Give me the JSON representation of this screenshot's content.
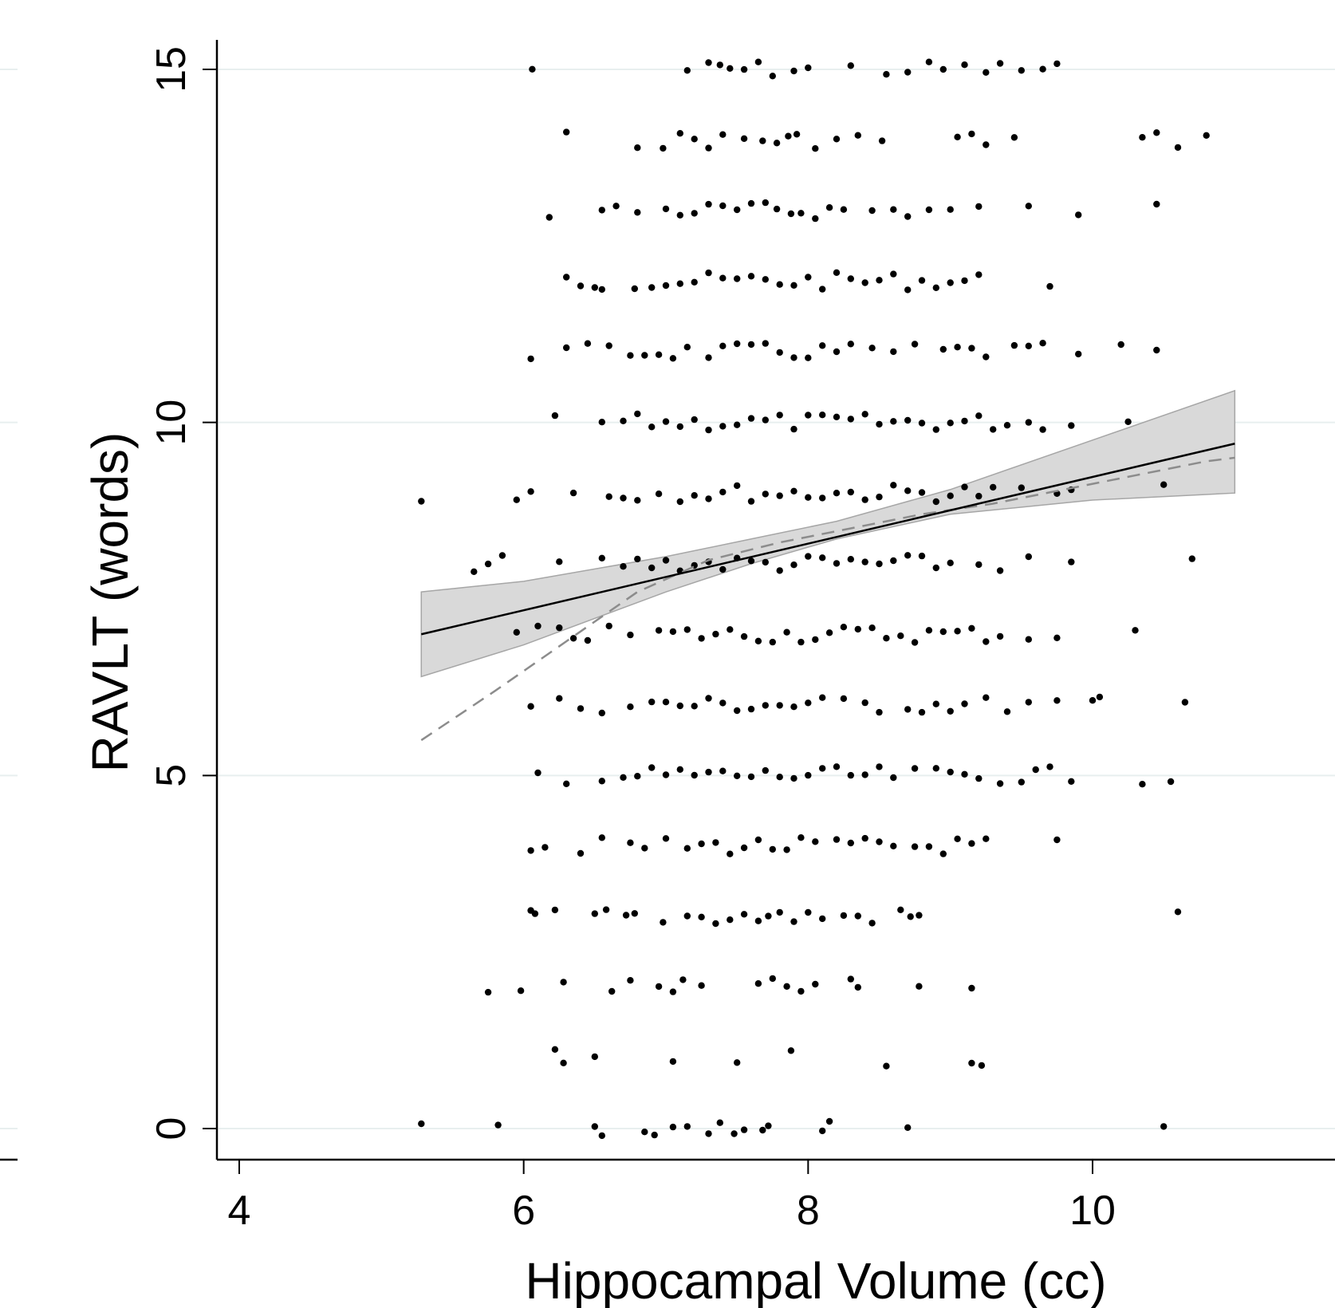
{
  "chart_data": {
    "type": "scatter",
    "title": "",
    "xlabel": "Hippocampal Volume (cc)",
    "ylabel": "RAVLT (words)",
    "xlim": [
      3.9,
      11.9
    ],
    "ylim": [
      -0.9,
      16.0
    ],
    "x_ticks": [
      4,
      6,
      8,
      10
    ],
    "y_ticks": [
      0,
      5,
      10,
      15
    ],
    "x_tick_labels": [
      "4",
      "6",
      "8",
      "10"
    ],
    "y_tick_labels": [
      "0",
      "5",
      "10",
      "15"
    ],
    "grid": true,
    "colors": {
      "points": "#000000",
      "ci_band": "#d9d9d9",
      "fit": "#000000",
      "lowess": "#8c8c8c"
    },
    "rows": [
      {
        "y": 15,
        "xs": [
          6.06,
          7.15,
          7.3,
          7.38,
          7.45,
          7.55,
          7.65,
          7.75,
          7.9,
          8.0,
          8.3,
          8.55,
          8.7,
          8.85,
          8.95,
          9.1,
          9.25,
          9.35,
          9.5,
          9.65,
          9.75
        ]
      },
      {
        "y": 14,
        "xs": [
          6.3,
          6.8,
          6.98,
          7.1,
          7.2,
          7.3,
          7.4,
          7.55,
          7.68,
          7.78,
          7.86,
          7.92,
          8.05,
          8.2,
          8.35,
          8.52,
          9.05,
          9.15,
          9.25,
          9.45,
          10.35,
          10.45,
          10.6,
          10.8
        ]
      },
      {
        "y": 13,
        "xs": [
          6.18,
          6.55,
          6.65,
          6.8,
          7.0,
          7.1,
          7.2,
          7.3,
          7.4,
          7.5,
          7.6,
          7.7,
          7.78,
          7.88,
          7.95,
          8.05,
          8.15,
          8.25,
          8.45,
          8.6,
          8.7,
          8.85,
          9.0,
          9.2,
          9.55,
          9.9,
          10.45
        ]
      },
      {
        "y": 12,
        "xs": [
          6.3,
          6.4,
          6.5,
          6.55,
          6.78,
          6.9,
          7.0,
          7.1,
          7.2,
          7.3,
          7.4,
          7.5,
          7.6,
          7.7,
          7.8,
          7.9,
          8.0,
          8.1,
          8.2,
          8.3,
          8.4,
          8.5,
          8.6,
          8.7,
          8.8,
          8.9,
          9.0,
          9.1,
          9.2,
          9.7
        ]
      },
      {
        "y": 11,
        "xs": [
          6.05,
          6.3,
          6.45,
          6.6,
          6.75,
          6.85,
          6.95,
          7.05,
          7.15,
          7.3,
          7.4,
          7.5,
          7.6,
          7.7,
          7.8,
          7.9,
          8.0,
          8.1,
          8.2,
          8.3,
          8.45,
          8.6,
          8.75,
          8.95,
          9.05,
          9.15,
          9.25,
          9.45,
          9.55,
          9.65,
          9.9,
          10.2,
          10.45
        ]
      },
      {
        "y": 10,
        "xs": [
          6.22,
          6.55,
          6.7,
          6.8,
          6.9,
          7.0,
          7.1,
          7.2,
          7.3,
          7.4,
          7.5,
          7.6,
          7.7,
          7.8,
          7.9,
          8.0,
          8.1,
          8.2,
          8.3,
          8.4,
          8.5,
          8.6,
          8.7,
          8.8,
          8.9,
          9.0,
          9.1,
          9.2,
          9.3,
          9.4,
          9.55,
          9.65,
          9.85,
          10.25
        ]
      },
      {
        "y": 9,
        "xs": [
          5.28,
          5.95,
          6.05,
          6.35,
          6.6,
          6.7,
          6.8,
          6.95,
          7.1,
          7.2,
          7.3,
          7.4,
          7.5,
          7.6,
          7.7,
          7.8,
          7.9,
          8.0,
          8.1,
          8.2,
          8.3,
          8.4,
          8.5,
          8.6,
          8.7,
          8.8,
          8.9,
          9.0,
          9.1,
          9.2,
          9.3,
          9.5,
          9.75,
          9.85,
          10.5
        ]
      },
      {
        "y": 8,
        "xs": [
          5.65,
          5.75,
          5.85,
          6.25,
          6.55,
          6.7,
          6.8,
          6.9,
          7.0,
          7.1,
          7.2,
          7.3,
          7.4,
          7.5,
          7.6,
          7.7,
          7.8,
          7.9,
          8.0,
          8.1,
          8.2,
          8.3,
          8.4,
          8.5,
          8.6,
          8.7,
          8.8,
          8.9,
          9.0,
          9.2,
          9.35,
          9.55,
          9.85,
          10.7
        ]
      },
      {
        "y": 7,
        "xs": [
          5.95,
          6.1,
          6.25,
          6.35,
          6.45,
          6.6,
          6.75,
          6.95,
          7.05,
          7.15,
          7.25,
          7.35,
          7.45,
          7.55,
          7.65,
          7.75,
          7.85,
          7.95,
          8.05,
          8.15,
          8.25,
          8.35,
          8.45,
          8.55,
          8.65,
          8.75,
          8.85,
          8.95,
          9.05,
          9.15,
          9.25,
          9.35,
          9.55,
          9.75,
          10.3
        ]
      },
      {
        "y": 6,
        "xs": [
          6.05,
          6.25,
          6.4,
          6.55,
          6.75,
          6.9,
          7.0,
          7.1,
          7.2,
          7.3,
          7.4,
          7.5,
          7.6,
          7.7,
          7.8,
          7.9,
          8.0,
          8.1,
          8.25,
          8.4,
          8.5,
          8.7,
          8.8,
          8.9,
          9.0,
          9.1,
          9.25,
          9.4,
          9.55,
          9.75,
          10.0,
          10.05,
          10.65
        ]
      },
      {
        "y": 5,
        "xs": [
          6.1,
          6.3,
          6.55,
          6.7,
          6.8,
          6.9,
          7.0,
          7.1,
          7.2,
          7.3,
          7.4,
          7.5,
          7.6,
          7.7,
          7.8,
          7.9,
          8.0,
          8.1,
          8.2,
          8.3,
          8.4,
          8.5,
          8.6,
          8.75,
          8.9,
          9.0,
          9.1,
          9.2,
          9.35,
          9.5,
          9.6,
          9.7,
          9.85,
          10.35,
          10.55
        ]
      },
      {
        "y": 4,
        "xs": [
          6.05,
          6.15,
          6.4,
          6.55,
          6.75,
          6.85,
          7.0,
          7.15,
          7.25,
          7.35,
          7.45,
          7.55,
          7.65,
          7.75,
          7.85,
          7.95,
          8.05,
          8.2,
          8.3,
          8.4,
          8.5,
          8.6,
          8.75,
          8.85,
          8.95,
          9.05,
          9.15,
          9.25,
          9.75
        ]
      },
      {
        "y": 3,
        "xs": [
          6.05,
          6.08,
          6.22,
          6.5,
          6.58,
          6.72,
          6.78,
          6.98,
          7.15,
          7.25,
          7.35,
          7.45,
          7.55,
          7.65,
          7.72,
          7.8,
          7.9,
          8.0,
          8.1,
          8.25,
          8.35,
          8.45,
          8.65,
          8.72,
          8.78,
          10.6
        ]
      },
      {
        "y": 2,
        "xs": [
          5.75,
          5.98,
          6.28,
          6.62,
          6.75,
          6.95,
          7.05,
          7.12,
          7.25,
          7.65,
          7.75,
          7.85,
          7.95,
          8.05,
          8.3,
          8.35,
          8.78,
          9.15
        ]
      },
      {
        "y": 1,
        "xs": [
          6.22,
          6.28,
          6.5,
          7.05,
          7.5,
          7.88,
          8.55,
          9.15,
          9.22
        ]
      },
      {
        "y": 0,
        "xs": [
          5.28,
          5.82,
          6.5,
          6.55,
          6.85,
          6.92,
          7.05,
          7.15,
          7.3,
          7.38,
          7.48,
          7.55,
          7.68,
          7.72,
          8.1,
          8.15,
          8.7,
          10.5
        ]
      }
    ],
    "fit_line": {
      "x": [
        5.28,
        11.0
      ],
      "y": [
        7.0,
        9.7
      ]
    },
    "ci_band": {
      "x": [
        5.28,
        6.0,
        7.0,
        7.6,
        8.2,
        9.0,
        10.0,
        11.0
      ],
      "lower": [
        6.4,
        6.85,
        7.6,
        8.0,
        8.35,
        8.7,
        8.9,
        9.0
      ],
      "upper": [
        7.6,
        7.75,
        8.1,
        8.35,
        8.6,
        9.05,
        9.75,
        10.45
      ]
    },
    "lowess_line": {
      "x": [
        5.28,
        5.8,
        6.3,
        6.8,
        7.3,
        7.8,
        8.3,
        8.8,
        9.3,
        9.8,
        10.3,
        10.8,
        11.0
      ],
      "y": [
        5.5,
        6.2,
        6.9,
        7.6,
        8.05,
        8.3,
        8.5,
        8.7,
        8.85,
        9.05,
        9.25,
        9.45,
        9.5
      ]
    }
  }
}
